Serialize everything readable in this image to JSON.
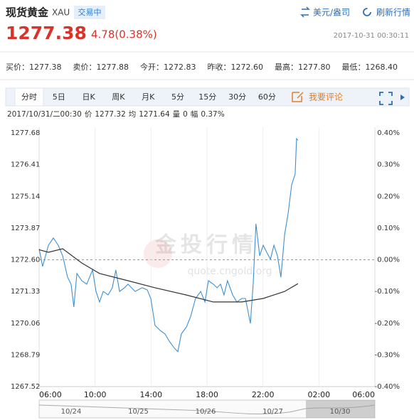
{
  "header": {
    "title": "现货黄金",
    "symbol": "XAU",
    "status": "交易中",
    "unit_link": "美元/盎司",
    "refresh_link": "刷新行情",
    "price": "1277.38",
    "change": "4.78(0.38%)",
    "timestamp": "2017-10-31 00:30:11"
  },
  "stats": [
    {
      "label": "买价：",
      "value": "1277.38"
    },
    {
      "label": "卖价：",
      "value": "1277.88"
    },
    {
      "label": "今开：",
      "value": "1272.83"
    },
    {
      "label": "昨收：",
      "value": "1272.60"
    },
    {
      "label": "最高：",
      "value": "1277.80"
    },
    {
      "label": "最低：",
      "value": "1268.40"
    }
  ],
  "tabs": [
    "分时",
    "5日",
    "日K",
    "周K",
    "月K",
    "5分",
    "15分",
    "30分",
    "60分"
  ],
  "comment": "我要评论",
  "info": [
    "2017/10/31/二00:30",
    "价",
    "1277.32",
    "均",
    "1271.64",
    "量",
    "0",
    "幅",
    "0.37%"
  ],
  "watermark": [
    "金投行情",
    "quote.cngold.org"
  ],
  "navigator_labels": [
    "10/24",
    "10/25",
    "10/26",
    "10/27",
    "10/30"
  ],
  "chart_data": {
    "type": "line",
    "xlim": [
      0,
      1440
    ],
    "xticks": [
      {
        "value": 0,
        "label": "06:00"
      },
      {
        "value": 240,
        "label": "10:00"
      },
      {
        "value": 480,
        "label": "14:00"
      },
      {
        "value": 720,
        "label": "18:00"
      },
      {
        "value": 960,
        "label": "22:00"
      },
      {
        "value": 1200,
        "label": "02:00"
      },
      {
        "value": 1440,
        "label": "06:00"
      }
    ],
    "ylim": [
      1267.52,
      1277.68
    ],
    "yticks": [
      1277.68,
      1276.41,
      1275.14,
      1273.87,
      {
        "value": 1272.6,
        "label": "1272.60"
      },
      1271.33,
      1270.06,
      1268.79,
      1267.52
    ],
    "y2lim": [
      -0.4,
      0.4
    ],
    "y2ticks": [
      {
        "value": 0.4,
        "label": "0.40%"
      },
      {
        "value": 0.3,
        "label": "0.30%"
      },
      {
        "value": 0.2,
        "label": "0.20%"
      },
      {
        "value": 0.1,
        "label": "0.10%"
      },
      {
        "value": 0,
        "label": "0.00%"
      },
      {
        "value": -0.1,
        "label": "-0.10%"
      },
      {
        "value": -0.2,
        "label": "-0.20%"
      },
      {
        "value": -0.3,
        "label": "-0.30%"
      },
      {
        "value": -0.4,
        "label": "-0.40%"
      }
    ],
    "up_color": "#d9342b",
    "down_color": "#3c9a3c",
    "base_color": "#333333",
    "grid": true,
    "series": [
      {
        "color": "#3f8fd2",
        "x": [
          0,
          15,
          40,
          61,
          82,
          101,
          122,
          137,
          149,
          162,
          183,
          204,
          229,
          244,
          259,
          275,
          296,
          314,
          329,
          345,
          366,
          381,
          412,
          442,
          464,
          479,
          497,
          519,
          540,
          558,
          580,
          595,
          610,
          632,
          650,
          671,
          693,
          711,
          726,
          747,
          763,
          778,
          793,
          808,
          830,
          848,
          869,
          885,
          906,
          918,
          930,
          946,
          961,
          976,
          992,
          1007,
          1022,
          1037,
          1053,
          1068,
          1083,
          1098,
          1104,
          1110
        ],
        "values": [
          1273.04,
          1272.33,
          1273.18,
          1273.47,
          1273.18,
          1272.76,
          1271.9,
          1271.62,
          1270.71,
          1272.05,
          1271.76,
          1271.62,
          1272.19,
          1271.33,
          1270.91,
          1271.33,
          1271.19,
          1271.48,
          1272.19,
          1271.33,
          1271.48,
          1271.62,
          1271.33,
          1271.48,
          1271.39,
          1271.05,
          1269.97,
          1269.77,
          1269.63,
          1269.34,
          1269.06,
          1268.92,
          1269.63,
          1269.91,
          1270.34,
          1271.05,
          1271.33,
          1270.91,
          1271.76,
          1271.62,
          1271.48,
          1271.62,
          1271.19,
          1271.76,
          1271.19,
          1270.91,
          1271.05,
          1271.05,
          1270.05,
          1271.62,
          1274.04,
          1272.76,
          1273.18,
          1272.9,
          1272.62,
          1273.18,
          1272.76,
          1271.9,
          1273.61,
          1274.46,
          1275.6,
          1276.03,
          1277.45,
          1277.38
        ]
      },
      {
        "color": "#333333",
        "x": [
          0,
          40,
          101,
          183,
          259,
          381,
          497,
          630,
          747,
          869,
          961,
          1053,
          1110
        ],
        "values": [
          1273.0,
          1272.9,
          1273.04,
          1272.47,
          1272.05,
          1271.76,
          1271.48,
          1271.19,
          1270.91,
          1270.91,
          1271.05,
          1271.33,
          1271.64
        ]
      }
    ]
  }
}
